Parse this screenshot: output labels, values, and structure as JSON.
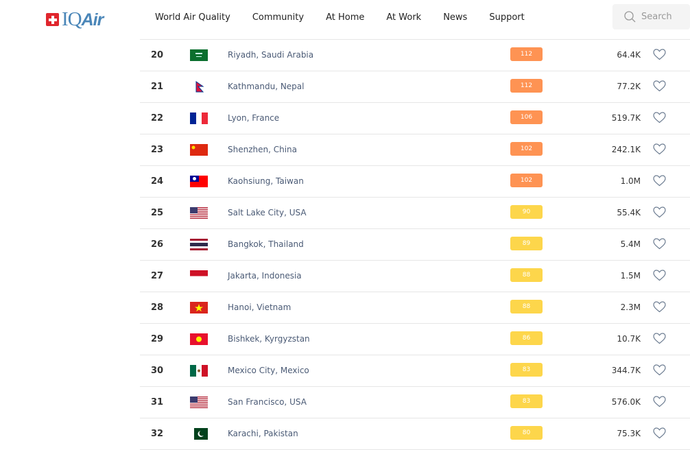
{
  "header": {
    "logo": "IQAir",
    "nav": [
      "World Air Quality",
      "Community",
      "At Home",
      "At Work",
      "News",
      "Support"
    ],
    "search_placeholder": "Search"
  },
  "colors": {
    "orange": "#fe9353",
    "yellow": "#fdd64b"
  },
  "rows": [
    {
      "rank": "20",
      "flag": "saudi-arabia",
      "city": "Riyadh, Saudi Arabia",
      "aqi": "112",
      "level": "orange",
      "pop": "64.4K"
    },
    {
      "rank": "21",
      "flag": "nepal",
      "city": "Kathmandu, Nepal",
      "aqi": "112",
      "level": "orange",
      "pop": "77.2K"
    },
    {
      "rank": "22",
      "flag": "france",
      "city": "Lyon, France",
      "aqi": "106",
      "level": "orange",
      "pop": "519.7K"
    },
    {
      "rank": "23",
      "flag": "china",
      "city": "Shenzhen, China",
      "aqi": "102",
      "level": "orange",
      "pop": "242.1K"
    },
    {
      "rank": "24",
      "flag": "taiwan",
      "city": "Kaohsiung, Taiwan",
      "aqi": "102",
      "level": "orange",
      "pop": "1.0M"
    },
    {
      "rank": "25",
      "flag": "usa",
      "city": "Salt Lake City, USA",
      "aqi": "90",
      "level": "yellow",
      "pop": "55.4K"
    },
    {
      "rank": "26",
      "flag": "thailand",
      "city": "Bangkok, Thailand",
      "aqi": "89",
      "level": "yellow",
      "pop": "5.4M"
    },
    {
      "rank": "27",
      "flag": "indonesia",
      "city": "Jakarta, Indonesia",
      "aqi": "88",
      "level": "yellow",
      "pop": "1.5M"
    },
    {
      "rank": "28",
      "flag": "vietnam",
      "city": "Hanoi, Vietnam",
      "aqi": "88",
      "level": "yellow",
      "pop": "2.3M"
    },
    {
      "rank": "29",
      "flag": "kyrgyzstan",
      "city": "Bishkek, Kyrgyzstan",
      "aqi": "86",
      "level": "yellow",
      "pop": "10.7K"
    },
    {
      "rank": "30",
      "flag": "mexico",
      "city": "Mexico City, Mexico",
      "aqi": "83",
      "level": "yellow",
      "pop": "344.7K"
    },
    {
      "rank": "31",
      "flag": "usa",
      "city": "San Francisco, USA",
      "aqi": "83",
      "level": "yellow",
      "pop": "576.0K"
    },
    {
      "rank": "32",
      "flag": "pakistan",
      "city": "Karachi, Pakistan",
      "aqi": "80",
      "level": "yellow",
      "pop": "75.3K"
    }
  ]
}
